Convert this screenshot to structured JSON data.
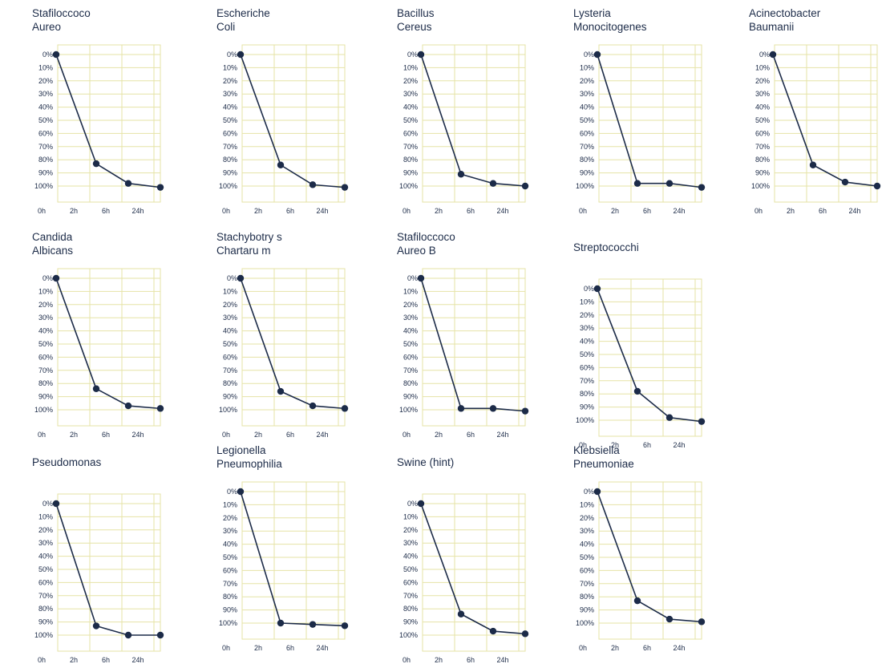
{
  "colors": {
    "grid": "#e6e3a6",
    "line": "#1c2b48",
    "text": "#1c2b48"
  },
  "chart_data": [
    {
      "type": "line",
      "title_lines": [
        "Stafiloccoco",
        "Aureo"
      ],
      "categories": [
        "0h",
        "2h",
        "6h",
        "24h"
      ],
      "y_ticks": [
        "0%",
        "10%",
        "20%",
        "30%",
        "40%",
        "50%",
        "60%",
        "70%",
        "80%",
        "90%",
        "100%"
      ],
      "ylim": [
        0,
        100
      ],
      "y_inverted": true,
      "grid": true,
      "series": [
        {
          "x": [
            0.25,
            1.5,
            2.5,
            3.5
          ],
          "y": [
            0,
            83,
            98,
            101
          ]
        }
      ]
    },
    {
      "type": "line",
      "title_lines": [
        "Escheriche",
        "Coli"
      ],
      "categories": [
        "0h",
        "2h",
        "6h",
        "24h"
      ],
      "y_ticks": [
        "0%",
        "10%",
        "20%",
        "30%",
        "40%",
        "50%",
        "60%",
        "70%",
        "80%",
        "90%",
        "100%"
      ],
      "ylim": [
        0,
        100
      ],
      "y_inverted": true,
      "grid": true,
      "series": [
        {
          "x": [
            0.25,
            1.5,
            2.5,
            3.5
          ],
          "y": [
            0,
            84,
            99,
            101
          ]
        }
      ]
    },
    {
      "type": "line",
      "title_lines": [
        "Bacillus",
        "Cereus"
      ],
      "categories": [
        "0h",
        "2h",
        "6h",
        "24h"
      ],
      "y_ticks": [
        "0%",
        "10%",
        "20%",
        "30%",
        "40%",
        "50%",
        "60%",
        "70%",
        "80%",
        "90%",
        "100%"
      ],
      "ylim": [
        0,
        100
      ],
      "y_inverted": true,
      "grid": true,
      "series": [
        {
          "x": [
            0.25,
            1.5,
            2.5,
            3.5
          ],
          "y": [
            0,
            91,
            98,
            100
          ]
        }
      ]
    },
    {
      "type": "line",
      "title_lines": [
        "Lysteria",
        "Monocitogenes"
      ],
      "categories": [
        "0h",
        "2h",
        "6h",
        "24h"
      ],
      "y_ticks": [
        "0%",
        "10%",
        "20%",
        "30%",
        "40%",
        "50%",
        "60%",
        "70%",
        "80%",
        "90%",
        "100%"
      ],
      "ylim": [
        0,
        100
      ],
      "y_inverted": true,
      "grid": true,
      "series": [
        {
          "x": [
            0.25,
            1.5,
            2.5,
            3.5
          ],
          "y": [
            0,
            98,
            98,
            101
          ]
        }
      ]
    },
    {
      "type": "line",
      "title_lines": [
        "Acinectobacter",
        "Baumanii"
      ],
      "categories": [
        "0h",
        "2h",
        "6h",
        "24h"
      ],
      "y_ticks": [
        "0%",
        "10%",
        "20%",
        "30%",
        "40%",
        "50%",
        "60%",
        "70%",
        "80%",
        "90%",
        "100%"
      ],
      "ylim": [
        0,
        100
      ],
      "y_inverted": true,
      "grid": true,
      "series": [
        {
          "x": [
            0.25,
            1.5,
            2.5,
            3.5
          ],
          "y": [
            0,
            84,
            97,
            100
          ]
        }
      ]
    },
    {
      "type": "line",
      "title_lines": [
        "Candida",
        "Albicans"
      ],
      "categories": [
        "0h",
        "2h",
        "6h",
        "24h"
      ],
      "y_ticks": [
        "0%",
        "10%",
        "20%",
        "30%",
        "40%",
        "50%",
        "60%",
        "70%",
        "80%",
        "90%",
        "100%"
      ],
      "ylim": [
        0,
        100
      ],
      "y_inverted": true,
      "grid": true,
      "series": [
        {
          "x": [
            0.25,
            1.5,
            2.5,
            3.5
          ],
          "y": [
            0,
            84,
            97,
            99
          ]
        }
      ]
    },
    {
      "type": "line",
      "title_lines": [
        "Stachybotry s",
        "Chartaru m"
      ],
      "categories": [
        "0h",
        "2h",
        "6h",
        "24h"
      ],
      "y_ticks": [
        "0%",
        "10%",
        "20%",
        "30%",
        "40%",
        "50%",
        "60%",
        "70%",
        "80%",
        "90%",
        "100%"
      ],
      "ylim": [
        0,
        100
      ],
      "y_inverted": true,
      "grid": true,
      "series": [
        {
          "x": [
            0.25,
            1.5,
            2.5,
            3.5
          ],
          "y": [
            0,
            86,
            97,
            99
          ]
        }
      ]
    },
    {
      "type": "line",
      "title_lines": [
        "Stafiloccoco",
        "Aureo B"
      ],
      "categories": [
        "0h",
        "2h",
        "6h",
        "24h"
      ],
      "y_ticks": [
        "0%",
        "10%",
        "20%",
        "30%",
        "40%",
        "50%",
        "60%",
        "70%",
        "80%",
        "90%",
        "100%"
      ],
      "ylim": [
        0,
        100
      ],
      "y_inverted": true,
      "grid": true,
      "series": [
        {
          "x": [
            0.25,
            1.5,
            2.5,
            3.5
          ],
          "y": [
            0,
            99,
            99,
            101
          ]
        }
      ]
    },
    {
      "type": "line",
      "title_lines": [
        "Streptococchi"
      ],
      "categories": [
        "0h",
        "2h",
        "6h",
        "24h"
      ],
      "y_ticks": [
        "0%",
        "10%",
        "20%",
        "30%",
        "40%",
        "50%",
        "60%",
        "70%",
        "80%",
        "90%",
        "100%"
      ],
      "ylim": [
        0,
        100
      ],
      "y_inverted": true,
      "grid": true,
      "series": [
        {
          "x": [
            0.25,
            1.5,
            2.5,
            3.5
          ],
          "y": [
            0,
            78,
            98,
            101
          ]
        }
      ]
    },
    {
      "type": "line",
      "title_lines": [
        "Pseudomonas"
      ],
      "categories": [
        "0h",
        "2h",
        "6h",
        "24h"
      ],
      "y_ticks": [
        "0%",
        "10%",
        "20%",
        "30%",
        "40%",
        "50%",
        "60%",
        "70%",
        "80%",
        "90%",
        "100%"
      ],
      "ylim": [
        0,
        100
      ],
      "y_inverted": true,
      "grid": true,
      "series": [
        {
          "x": [
            0.25,
            1.5,
            2.5,
            3.5
          ],
          "y": [
            0,
            93,
            100,
            100
          ]
        }
      ]
    },
    {
      "type": "line",
      "title_lines": [
        "Legionella",
        "Pneumophilia"
      ],
      "categories": [
        "0h",
        "2h",
        "6h",
        "24h"
      ],
      "y_ticks": [
        "0%",
        "10%",
        "20%",
        "30%",
        "40%",
        "50%",
        "60%",
        "70%",
        "80%",
        "90%",
        "100%"
      ],
      "ylim": [
        0,
        100
      ],
      "y_inverted": true,
      "grid": true,
      "series": [
        {
          "x": [
            0.25,
            1.5,
            2.5,
            3.5
          ],
          "y": [
            0,
            100,
            101,
            102
          ]
        }
      ]
    },
    {
      "type": "line",
      "title_lines": [
        "Swine (hint)"
      ],
      "categories": [
        "0h",
        "2h",
        "6h",
        "24h"
      ],
      "y_ticks": [
        "0%",
        "10%",
        "20%",
        "30%",
        "40%",
        "50%",
        "60%",
        "70%",
        "80%",
        "90%",
        "100%"
      ],
      "ylim": [
        0,
        100
      ],
      "y_inverted": true,
      "grid": true,
      "series": [
        {
          "x": [
            0.25,
            1.5,
            2.5,
            3.5
          ],
          "y": [
            0,
            84,
            97,
            99
          ]
        }
      ]
    },
    {
      "type": "line",
      "title_lines": [
        "Klebsiella",
        "Pneumoniae"
      ],
      "categories": [
        "0h",
        "2h",
        "6h",
        "24h"
      ],
      "y_ticks": [
        "0%",
        "10%",
        "20%",
        "30%",
        "40%",
        "50%",
        "60%",
        "70%",
        "80%",
        "90%",
        "100%"
      ],
      "ylim": [
        0,
        100
      ],
      "y_inverted": true,
      "grid": true,
      "series": [
        {
          "x": [
            0.25,
            1.5,
            2.5,
            3.5
          ],
          "y": [
            0,
            83,
            97,
            99
          ]
        }
      ]
    }
  ]
}
